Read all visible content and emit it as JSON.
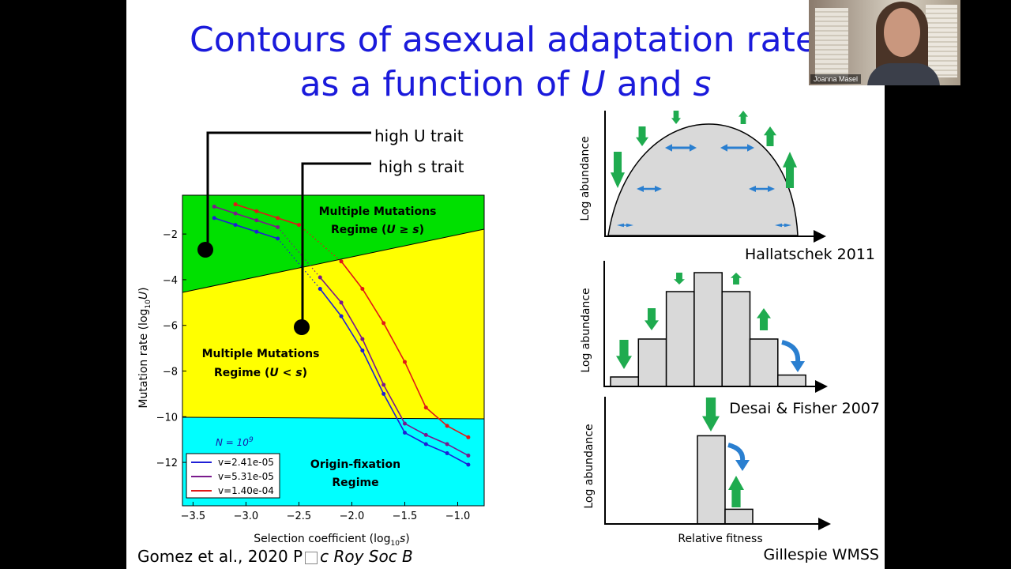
{
  "slide": {
    "title_line1": "Contours of asexual adaptation rate w",
    "title_line2_prefix": "as a function of ",
    "title_U": "U",
    "title_and": " and ",
    "title_s": "s",
    "citation_left": "Gomez et al., 2020 P",
    "citation_right": "c Roy Soc B",
    "callout_high_U": "high U trait",
    "callout_high_s": "high s trait"
  },
  "webcam": {
    "name": "Joanna Masel"
  },
  "chart_data": [
    {
      "type": "line",
      "xlabel": "Selection coefficient (log10 s)",
      "ylabel": "Mutation rate (log10 U)",
      "xlim": [
        -3.6,
        -0.75
      ],
      "ylim": [
        -13.9,
        -0.3
      ],
      "x_ticks": [
        "-3.5",
        "-3.0",
        "-2.5",
        "-2.0",
        "-1.5",
        "-1.0"
      ],
      "y_ticks": [
        "-2",
        "-4",
        "-6",
        "-8",
        "-10",
        "-12"
      ],
      "regions": [
        {
          "name": "Multiple Mutations Regime (U ≥ s)",
          "color": "#00e000"
        },
        {
          "name": "Multiple Mutations Regime (U < s)",
          "color": "#ffff00"
        },
        {
          "name": "Origin-fixation Regime",
          "color": "#00ffff"
        }
      ],
      "annotation": "N = 10^9",
      "legend_position": "bottom-left",
      "series": [
        {
          "name": "v=2.41e-05",
          "color": "#1f1fd6",
          "points": [
            [
              -3.3,
              -1.3
            ],
            [
              -3.1,
              -1.6
            ],
            [
              -2.9,
              -1.9
            ],
            [
              -2.7,
              -2.2
            ],
            [
              -2.3,
              -4.4
            ],
            [
              -2.1,
              -5.6
            ],
            [
              -1.9,
              -7.1
            ],
            [
              -1.7,
              -9.0
            ],
            [
              -1.5,
              -10.7
            ],
            [
              -1.3,
              -11.2
            ],
            [
              -1.1,
              -11.6
            ],
            [
              -0.9,
              -12.1
            ]
          ]
        },
        {
          "name": "v=5.31e-05",
          "color": "#7a1a8c",
          "points": [
            [
              -3.3,
              -0.8
            ],
            [
              -3.1,
              -1.1
            ],
            [
              -2.9,
              -1.4
            ],
            [
              -2.7,
              -1.7
            ],
            [
              -2.3,
              -3.9
            ],
            [
              -2.1,
              -5.0
            ],
            [
              -1.9,
              -6.6
            ],
            [
              -1.7,
              -8.6
            ],
            [
              -1.5,
              -10.3
            ],
            [
              -1.3,
              -10.8
            ],
            [
              -1.1,
              -11.2
            ],
            [
              -0.9,
              -11.7
            ]
          ]
        },
        {
          "name": "v=1.40e-04",
          "color": "#e01818",
          "points": [
            [
              -3.1,
              -0.7
            ],
            [
              -2.9,
              -1.0
            ],
            [
              -2.7,
              -1.3
            ],
            [
              -2.5,
              -1.6
            ],
            [
              -2.1,
              -3.2
            ],
            [
              -1.9,
              -4.4
            ],
            [
              -1.7,
              -5.9
            ],
            [
              -1.5,
              -7.6
            ],
            [
              -1.3,
              -9.6
            ],
            [
              -1.1,
              -10.4
            ],
            [
              -0.9,
              -10.9
            ]
          ]
        }
      ]
    },
    {
      "type": "area",
      "title": "Hallatschek 2011",
      "ylabel": "Log abundance"
    },
    {
      "type": "bar",
      "title": "Desai & Fisher 2007",
      "ylabel": "Log abundance",
      "values": [
        1,
        5,
        10,
        12,
        10,
        5,
        1.2
      ]
    },
    {
      "type": "bar",
      "title": "Gillespie WMSS",
      "xlabel": "Relative fitness",
      "ylabel": "Log abundance",
      "values": [
        12,
        2
      ]
    }
  ]
}
